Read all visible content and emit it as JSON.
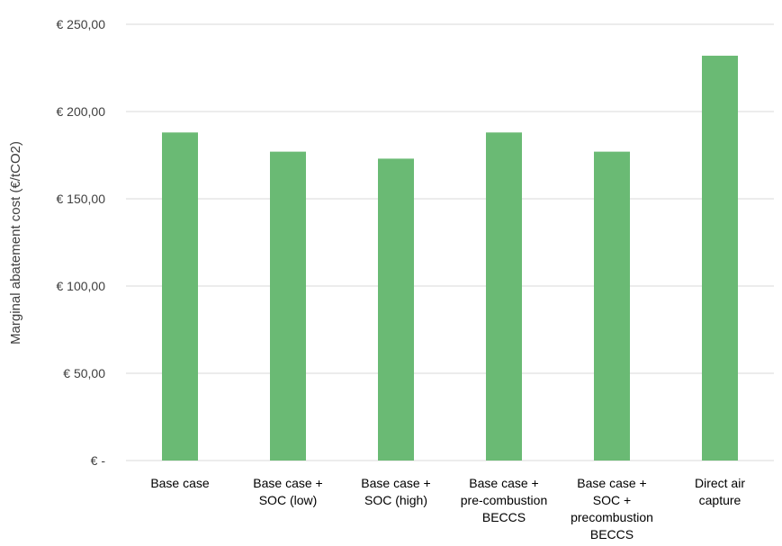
{
  "chart_data": {
    "type": "bar",
    "title": "",
    "xlabel": "",
    "ylabel": "Marginal abatement cost (€/tCO2)",
    "ylim": [
      0,
      250
    ],
    "yticks": [
      0,
      50,
      100,
      150,
      200,
      250
    ],
    "ytick_labels": [
      "€ -",
      "€ 50,00",
      "€ 100,00",
      "€ 150,00",
      "€ 200,00",
      "€ 250,00"
    ],
    "categories": [
      [
        "Base case"
      ],
      [
        "Base case +",
        "SOC (low)"
      ],
      [
        "Base case +",
        "SOC (high)"
      ],
      [
        "Base case +",
        "pre-combustion",
        "BECCS"
      ],
      [
        "Base case +",
        "SOC +",
        "precombustion",
        "BECCS"
      ],
      [
        "Direct air",
        "capture"
      ]
    ],
    "values": [
      188,
      177,
      173,
      188,
      177,
      232
    ],
    "grid": true,
    "legend": "none",
    "bar_color": "#6aba74"
  }
}
